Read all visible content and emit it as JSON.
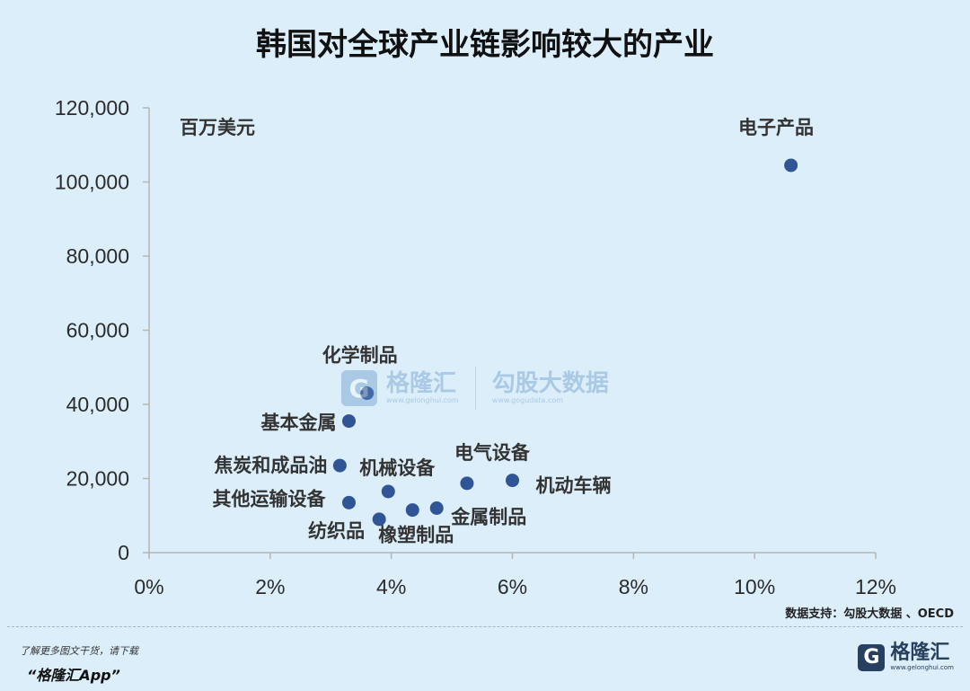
{
  "title": "韩国对全球产业链影响较大的产业",
  "unit": "百万美元",
  "source": "数据支持：勾股大数据 、OECD",
  "promo": {
    "line1": "了解更多图文干货，请下载",
    "line2": "“格隆汇App”"
  },
  "brand": {
    "name": "格隆汇",
    "url": "www.gelonghui.com",
    "logo_letter": "G"
  },
  "watermark": {
    "brand": "格隆汇",
    "brand_url": "www.gelonghui.com",
    "partner": "勾股大数据",
    "partner_url": "www.gogudata.com"
  },
  "colors": {
    "background": "#dbeefa",
    "point": "#2f5597",
    "axis": "#b5b5b5"
  },
  "chart_data": {
    "type": "scatter",
    "title": "韩国对全球产业链影响较大的产业",
    "ylabel": "百万美元",
    "xlim": [
      0,
      12
    ],
    "ylim": [
      0,
      120000
    ],
    "x_ticks": [
      "0%",
      "2%",
      "4%",
      "6%",
      "8%",
      "10%",
      "12%"
    ],
    "y_ticks": [
      "0",
      "20,000",
      "40,000",
      "60,000",
      "80,000",
      "100,000",
      "120,000"
    ],
    "grid": false,
    "points": [
      {
        "label": "电子产品",
        "x": 10.6,
        "y": 104500
      },
      {
        "label": "化学制品",
        "x": 3.6,
        "y": 43000
      },
      {
        "label": "基本金属",
        "x": 3.3,
        "y": 35500
      },
      {
        "label": "焦炭和成品油",
        "x": 3.15,
        "y": 23500
      },
      {
        "label": "机械设备",
        "x": 3.95,
        "y": 16500
      },
      {
        "label": "电气设备",
        "x": 5.25,
        "y": 18700
      },
      {
        "label": "机动车辆",
        "x": 6.0,
        "y": 19500
      },
      {
        "label": "其他运输设备",
        "x": 3.3,
        "y": 13500
      },
      {
        "label": "金属制品",
        "x": 4.75,
        "y": 12000
      },
      {
        "label": "橡塑制品",
        "x": 4.35,
        "y": 11500
      },
      {
        "label": "纺织品",
        "x": 3.8,
        "y": 9000
      }
    ]
  }
}
